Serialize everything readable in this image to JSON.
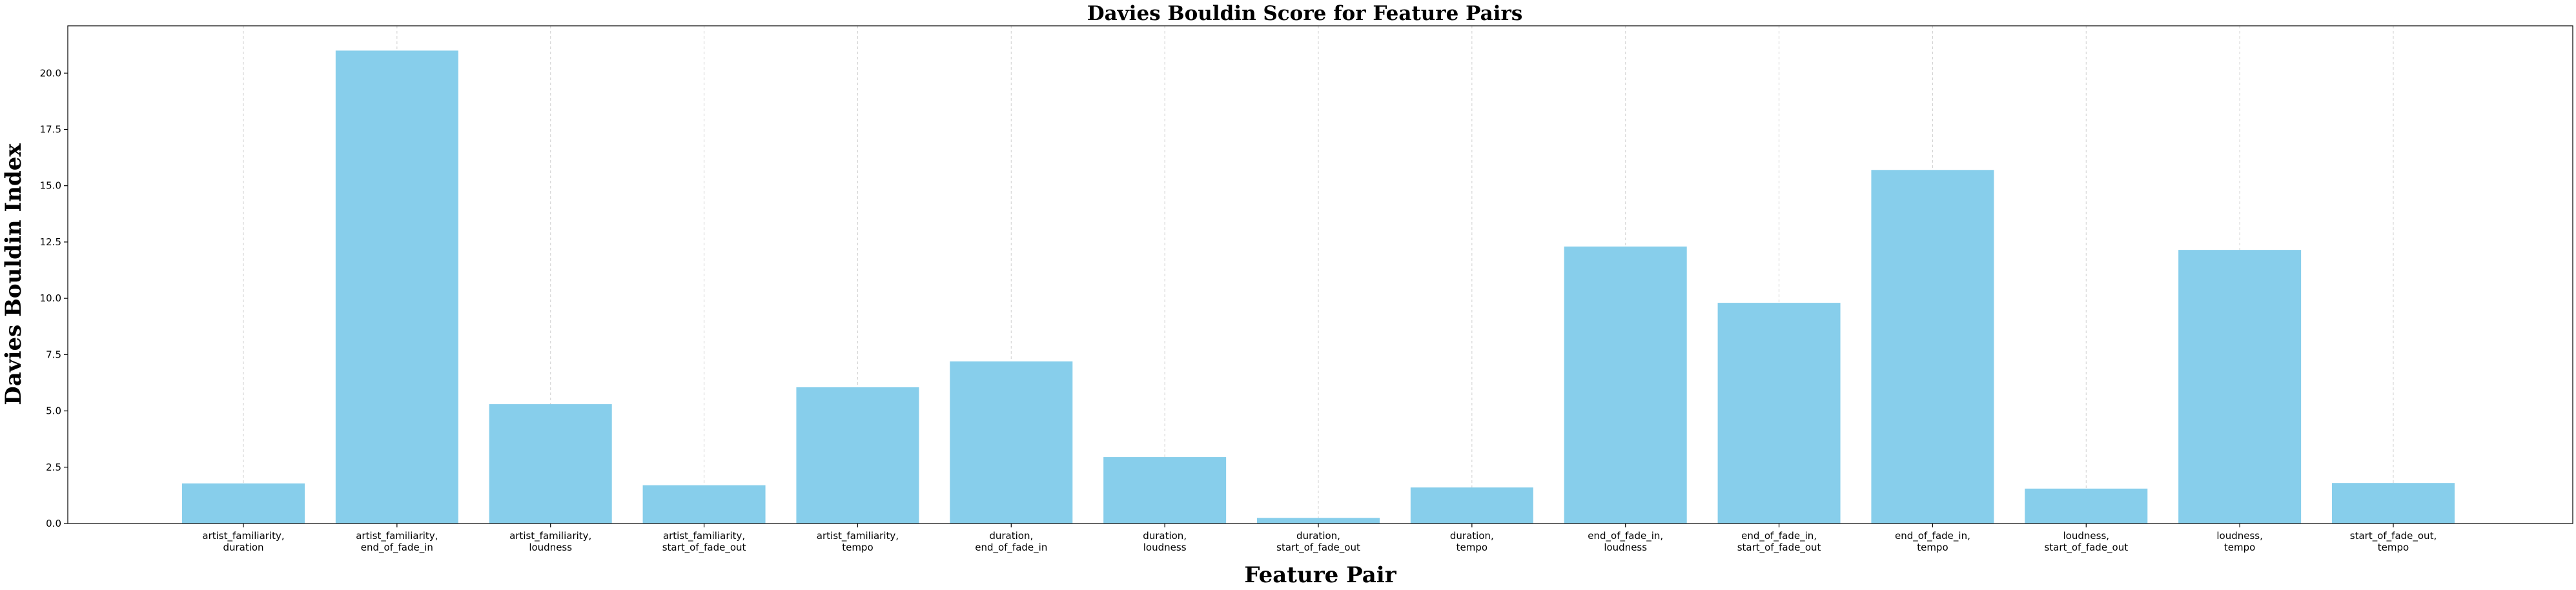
{
  "chart_data": {
    "type": "bar",
    "title": "Davies Bouldin Score for Feature Pairs",
    "xlabel": "Feature Pair",
    "ylabel": "Davies Bouldin Index",
    "ylim": [
      0,
      22.1
    ],
    "yticks": [
      "0.0",
      "2.5",
      "5.0",
      "7.5",
      "10.0",
      "12.5",
      "15.0",
      "17.5",
      "20.0"
    ],
    "grid": "x-dashed",
    "bar_color": "#87ceeb",
    "categories": [
      [
        "artist_familiarity,",
        "duration"
      ],
      [
        "artist_familiarity,",
        "end_of_fade_in"
      ],
      [
        "artist_familiarity,",
        "loudness"
      ],
      [
        "artist_familiarity,",
        "start_of_fade_out"
      ],
      [
        "artist_familiarity,",
        "tempo"
      ],
      [
        "duration,",
        "end_of_fade_in"
      ],
      [
        "duration,",
        "loudness"
      ],
      [
        "duration,",
        "start_of_fade_out"
      ],
      [
        "duration,",
        "tempo"
      ],
      [
        "end_of_fade_in,",
        "loudness"
      ],
      [
        "end_of_fade_in,",
        "start_of_fade_out"
      ],
      [
        "end_of_fade_in,",
        "tempo"
      ],
      [
        "loudness,",
        "start_of_fade_out"
      ],
      [
        "loudness,",
        "tempo"
      ],
      [
        "start_of_fade_out,",
        "tempo"
      ]
    ],
    "values": [
      1.78,
      21.0,
      5.3,
      1.7,
      6.05,
      7.2,
      2.95,
      0.25,
      1.6,
      12.3,
      9.8,
      15.7,
      1.55,
      12.15,
      1.8
    ]
  }
}
